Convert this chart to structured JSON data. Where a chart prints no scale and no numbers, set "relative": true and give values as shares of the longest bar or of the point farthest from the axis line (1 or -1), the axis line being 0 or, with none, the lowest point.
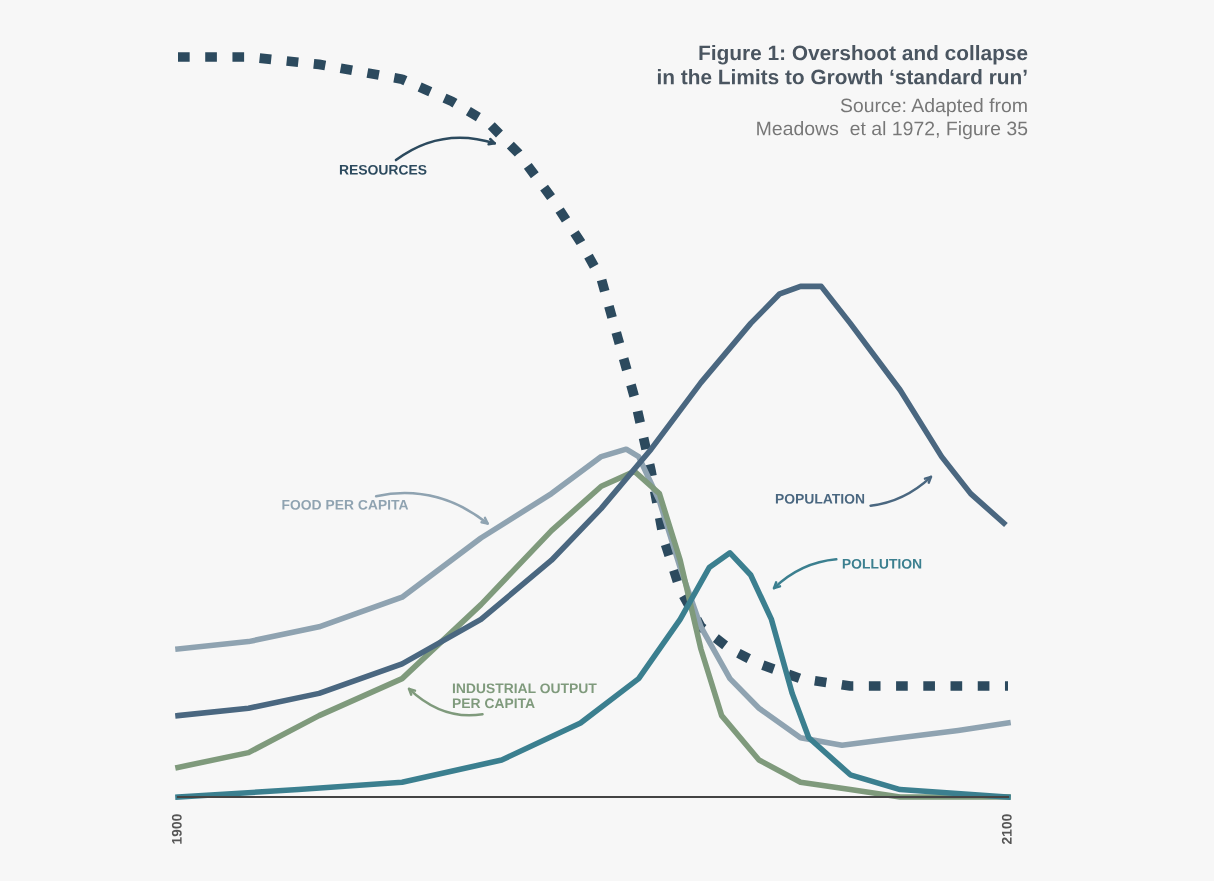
{
  "chart_data": {
    "type": "line",
    "title": "Figure 1: Overshoot and collapse\nin the Limits to Growth ‘standard run’",
    "annotations": [
      "Source: Adapted from\nMeadows  et al 1972, Figure 35"
    ],
    "relative": true,
    "xlim": [
      1900,
      2100
    ],
    "xticks": [
      1900,
      2100
    ],
    "tick_labels": "x",
    "grid": false,
    "marker": "none",
    "series": [
      {
        "name": "RESOURCES",
        "color": "#2c4a5e",
        "line_style": "dashed",
        "x": [
          1900,
          1917,
          1934,
          1954,
          1966,
          1975,
          1982,
          1990,
          1997,
          2002,
          2006,
          2010,
          2014,
          2017,
          2021,
          2026,
          2033,
          2040,
          2050,
          2062,
          2074,
          2100
        ],
        "values": [
          1.0,
          1.0,
          0.99,
          0.97,
          0.94,
          0.91,
          0.87,
          0.81,
          0.75,
          0.7,
          0.62,
          0.54,
          0.44,
          0.35,
          0.28,
          0.23,
          0.2,
          0.18,
          0.16,
          0.15,
          0.15,
          0.15
        ]
      },
      {
        "name": "FOOD PER CAPITA",
        "color": "#8fa3b1",
        "line_style": "solid",
        "x": [
          1900,
          1917,
          1934,
          1954,
          1973,
          1990,
          2002,
          2008,
          2011,
          2016,
          2021,
          2026,
          2033,
          2040,
          2050,
          2060,
          2074,
          2088,
          2100
        ],
        "values": [
          0.2,
          0.21,
          0.23,
          0.27,
          0.35,
          0.41,
          0.46,
          0.47,
          0.46,
          0.4,
          0.31,
          0.23,
          0.16,
          0.12,
          0.08,
          0.07,
          0.08,
          0.09,
          0.1
        ]
      },
      {
        "name": "INDUSTRIAL OUTPUT\nPER CAPITA",
        "color": "#7f9a7c",
        "line_style": "solid",
        "x": [
          1900,
          1917,
          1934,
          1954,
          1973,
          1990,
          2002,
          2010,
          2016,
          2021,
          2026,
          2031,
          2040,
          2050,
          2062,
          2074,
          2100
        ],
        "values": [
          0.04,
          0.06,
          0.11,
          0.16,
          0.26,
          0.36,
          0.42,
          0.44,
          0.41,
          0.32,
          0.2,
          0.11,
          0.05,
          0.02,
          0.01,
          0.0,
          0.0
        ]
      },
      {
        "name": "POPULATION",
        "color": "#4a6780",
        "line_style": "solid",
        "x": [
          1900,
          1917,
          1934,
          1954,
          1973,
          1990,
          2002,
          2014,
          2026,
          2038,
          2045,
          2050,
          2055,
          2062,
          2074,
          2084,
          2091,
          2099
        ],
        "values": [
          0.11,
          0.12,
          0.14,
          0.18,
          0.24,
          0.32,
          0.39,
          0.47,
          0.56,
          0.64,
          0.68,
          0.69,
          0.69,
          0.64,
          0.55,
          0.46,
          0.41,
          0.37
        ]
      },
      {
        "name": "POLLUTION",
        "color": "#3b7f8f",
        "line_style": "solid",
        "x": [
          1900,
          1929,
          1954,
          1978,
          1997,
          2011,
          2021,
          2028,
          2033,
          2038,
          2043,
          2048,
          2052,
          2062,
          2074,
          2100
        ],
        "values": [
          0.0,
          0.01,
          0.02,
          0.05,
          0.1,
          0.16,
          0.24,
          0.31,
          0.33,
          0.3,
          0.24,
          0.14,
          0.08,
          0.03,
          0.01,
          0.0
        ]
      }
    ]
  }
}
